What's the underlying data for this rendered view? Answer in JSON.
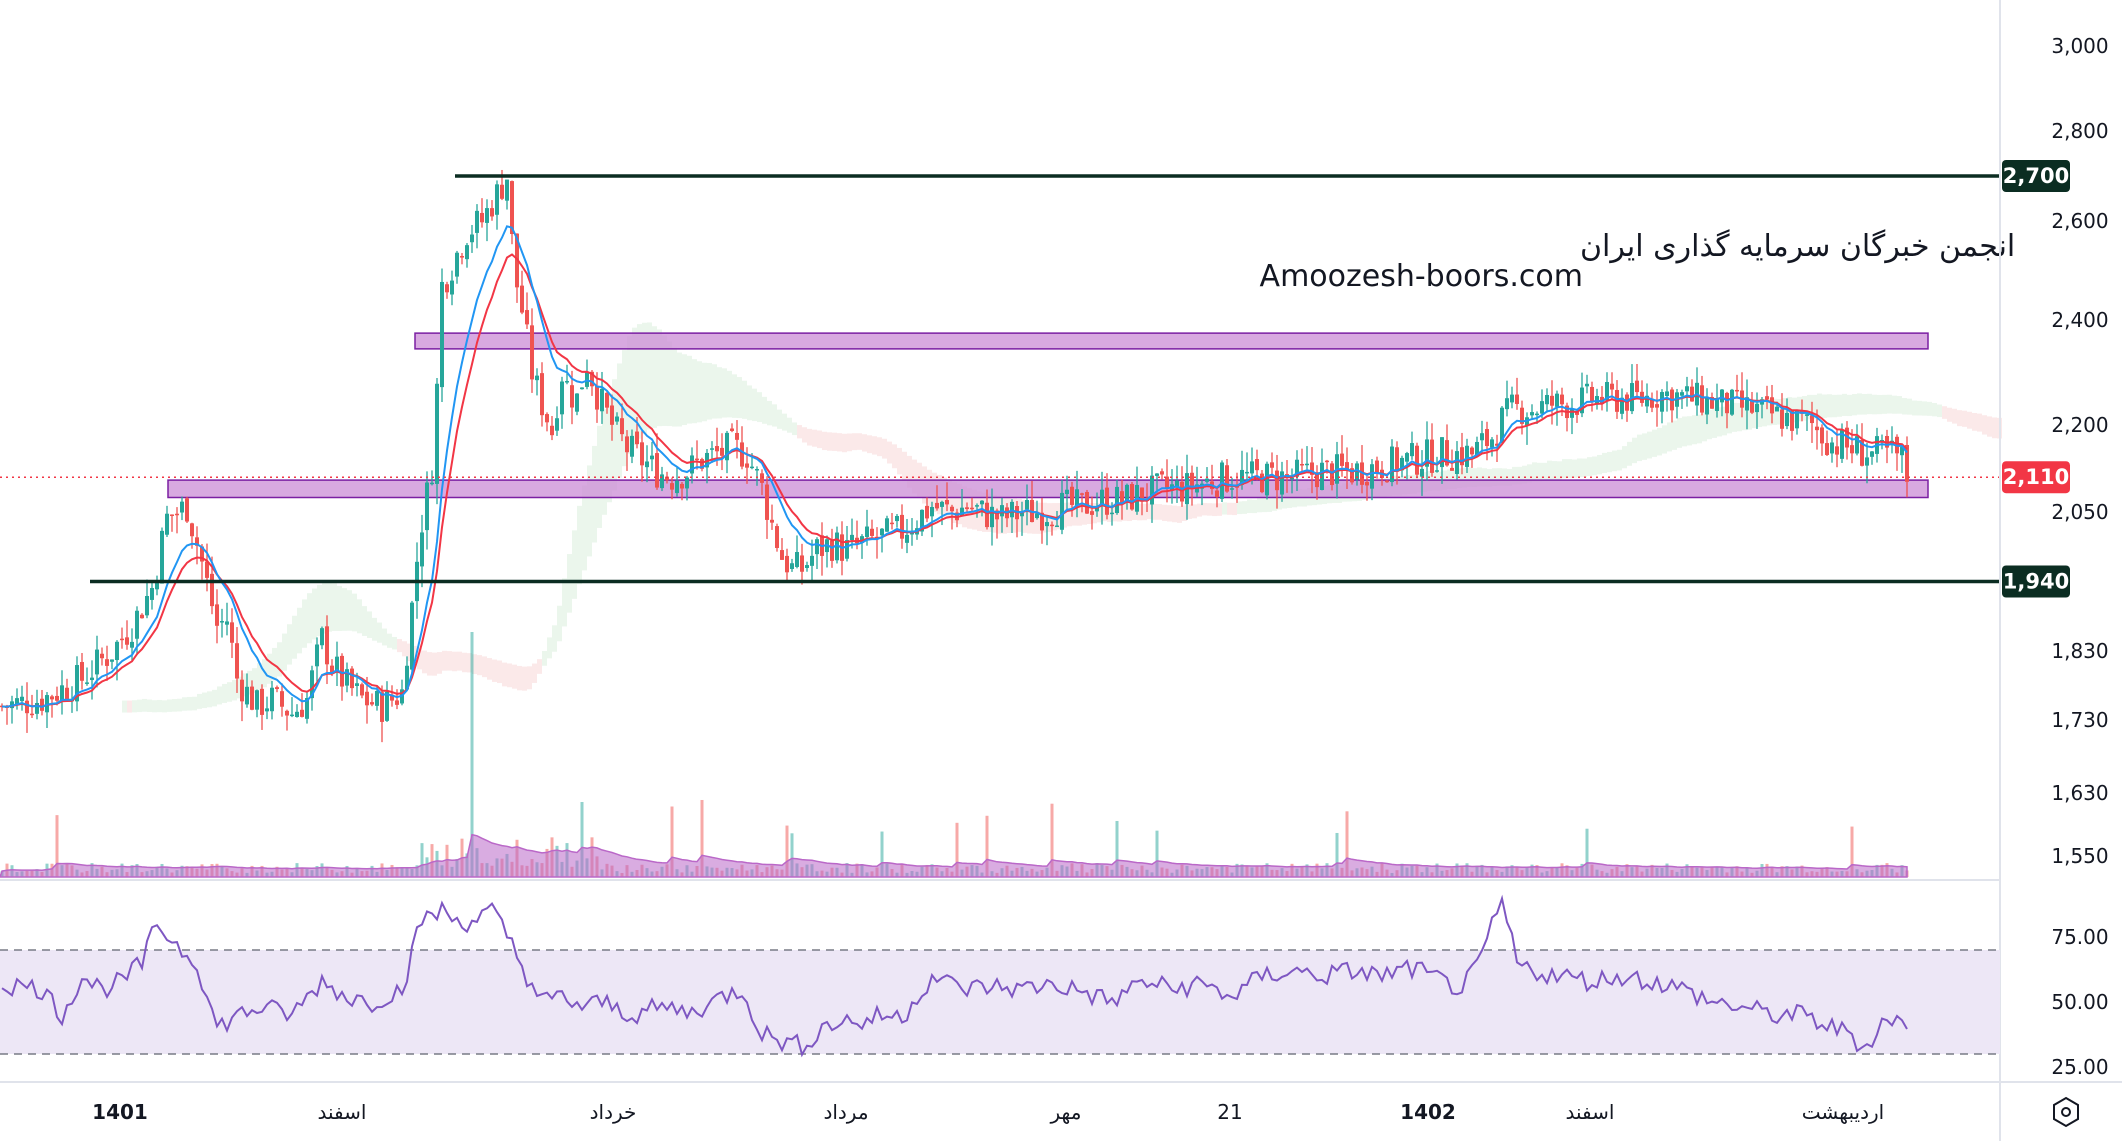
{
  "watermark": {
    "line1": "انجمن خبرگان سرمایه گذاری ایران",
    "line2": "Amoozesh-boors.com"
  },
  "colors": {
    "up": "#26a69a",
    "down": "#ef5350",
    "ema_fast": "#2196f3",
    "ema_slow": "#f23645",
    "zone_fill": "#ce93d8",
    "zone_stroke": "#7b1fa2",
    "level_line": "#0b2d22",
    "current_price": "#f23645",
    "rsi_line": "#7e57c2",
    "rsi_band": "#ede7f6",
    "volume_ma": "#ba68c8"
  },
  "chart_data": [
    {
      "type": "candlestick",
      "y_axis_ticks": [
        "3,000",
        "2,800",
        "2,600",
        "2,400",
        "2,200",
        "2,050",
        "1,830",
        "1,730",
        "1,630",
        "1,550"
      ],
      "x_axis_labels": [
        "1401",
        "اسفند",
        "خرداد",
        "مرداد",
        "مهر",
        "21",
        "1402",
        "اسفند",
        "اردیبهشت"
      ],
      "horizontal_levels": [
        {
          "value": 2700,
          "label": "2,700"
        },
        {
          "value": 1940,
          "label": "1,940"
        }
      ],
      "zones": [
        {
          "from": 2345,
          "to": 2375
        },
        {
          "from": 2075,
          "to": 2105
        }
      ],
      "current_price": {
        "value": 2110,
        "label": "2,110"
      },
      "price_anchors": [
        [
          0,
          1750
        ],
        [
          40,
          1760
        ],
        [
          80,
          1790
        ],
        [
          110,
          1830
        ],
        [
          130,
          1870
        ],
        [
          150,
          1930
        ],
        [
          165,
          2040
        ],
        [
          185,
          2060
        ],
        [
          200,
          1970
        ],
        [
          215,
          1870
        ],
        [
          225,
          1880
        ],
        [
          235,
          1790
        ],
        [
          255,
          1750
        ],
        [
          270,
          1760
        ],
        [
          290,
          1740
        ],
        [
          305,
          1760
        ],
        [
          320,
          1850
        ],
        [
          330,
          1810
        ],
        [
          345,
          1780
        ],
        [
          360,
          1760
        ],
        [
          380,
          1750
        ],
        [
          400,
          1770
        ],
        [
          410,
          1900
        ],
        [
          418,
          2020
        ],
        [
          425,
          2080
        ],
        [
          432,
          2150
        ],
        [
          440,
          2470
        ],
        [
          452,
          2520
        ],
        [
          465,
          2580
        ],
        [
          480,
          2600
        ],
        [
          490,
          2640
        ],
        [
          505,
          2700
        ],
        [
          512,
          2500
        ],
        [
          520,
          2420
        ],
        [
          530,
          2300
        ],
        [
          540,
          2240
        ],
        [
          550,
          2190
        ],
        [
          560,
          2300
        ],
        [
          568,
          2260
        ],
        [
          575,
          2250
        ],
        [
          585,
          2320
        ],
        [
          595,
          2260
        ],
        [
          610,
          2200
        ],
        [
          625,
          2160
        ],
        [
          640,
          2140
        ],
        [
          655,
          2120
        ],
        [
          670,
          2110
        ],
        [
          685,
          2120
        ],
        [
          700,
          2140
        ],
        [
          715,
          2150
        ],
        [
          730,
          2160
        ],
        [
          745,
          2150
        ],
        [
          760,
          2090
        ],
        [
          770,
          2030
        ],
        [
          780,
          1980
        ],
        [
          790,
          1960
        ],
        [
          800,
          1960
        ],
        [
          815,
          1990
        ],
        [
          830,
          2000
        ],
        [
          845,
          1990
        ],
        [
          860,
          2000
        ],
        [
          880,
          2010
        ],
        [
          900,
          2020
        ],
        [
          915,
          2040
        ],
        [
          930,
          2060
        ],
        [
          950,
          2050
        ],
        [
          965,
          2060
        ],
        [
          980,
          2050
        ],
        [
          1000,
          2040
        ],
        [
          1020,
          2050
        ],
        [
          1040,
          2050
        ],
        [
          1060,
          2060
        ],
        [
          1080,
          2060
        ],
        [
          1100,
          2070
        ],
        [
          1120,
          2070
        ],
        [
          1140,
          2080
        ],
        [
          1160,
          2090
        ],
        [
          1180,
          2090
        ],
        [
          1200,
          2100
        ],
        [
          1230,
          2110
        ],
        [
          1260,
          2110
        ],
        [
          1290,
          2110
        ],
        [
          1320,
          2120
        ],
        [
          1350,
          2120
        ],
        [
          1380,
          2130
        ],
        [
          1410,
          2140
        ],
        [
          1440,
          2150
        ],
        [
          1470,
          2150
        ],
        [
          1490,
          2180
        ],
        [
          1500,
          2210
        ],
        [
          1510,
          2230
        ],
        [
          1530,
          2230
        ],
        [
          1550,
          2240
        ],
        [
          1570,
          2240
        ],
        [
          1590,
          2250
        ],
        [
          1610,
          2250
        ],
        [
          1640,
          2250
        ],
        [
          1660,
          2260
        ],
        [
          1690,
          2250
        ],
        [
          1720,
          2240
        ],
        [
          1750,
          2230
        ],
        [
          1770,
          2220
        ],
        [
          1790,
          2210
        ],
        [
          1810,
          2200
        ],
        [
          1830,
          2170
        ],
        [
          1850,
          2160
        ],
        [
          1870,
          2150
        ],
        [
          1890,
          2150
        ],
        [
          1900,
          2140
        ],
        [
          1905,
          2110
        ]
      ],
      "rsi": {
        "y_ticks": [
          "75.00",
          "50.00",
          "25.00"
        ],
        "upper": 70,
        "lower": 30,
        "anchors": [
          [
            0,
            57
          ],
          [
            40,
            55
          ],
          [
            60,
            45
          ],
          [
            80,
            60
          ],
          [
            100,
            55
          ],
          [
            120,
            58
          ],
          [
            140,
            65
          ],
          [
            155,
            80
          ],
          [
            175,
            72
          ],
          [
            195,
            65
          ],
          [
            215,
            40
          ],
          [
            235,
            45
          ],
          [
            260,
            48
          ],
          [
            290,
            45
          ],
          [
            320,
            58
          ],
          [
            345,
            52
          ],
          [
            370,
            50
          ],
          [
            400,
            55
          ],
          [
            420,
            82
          ],
          [
            440,
            85
          ],
          [
            460,
            80
          ],
          [
            490,
            85
          ],
          [
            510,
            72
          ],
          [
            525,
            60
          ],
          [
            540,
            50
          ],
          [
            560,
            52
          ],
          [
            580,
            48
          ],
          [
            600,
            50
          ],
          [
            630,
            45
          ],
          [
            660,
            48
          ],
          [
            690,
            46
          ],
          [
            720,
            52
          ],
          [
            740,
            55
          ],
          [
            760,
            38
          ],
          [
            780,
            35
          ],
          [
            800,
            33
          ],
          [
            820,
            40
          ],
          [
            840,
            43
          ],
          [
            860,
            42
          ],
          [
            880,
            45
          ],
          [
            900,
            44
          ],
          [
            930,
            60
          ],
          [
            960,
            55
          ],
          [
            990,
            56
          ],
          [
            1020,
            55
          ],
          [
            1050,
            57
          ],
          [
            1080,
            54
          ],
          [
            1110,
            50
          ],
          [
            1140,
            58
          ],
          [
            1170,
            55
          ],
          [
            1200,
            57
          ],
          [
            1230,
            52
          ],
          [
            1260,
            60
          ],
          [
            1290,
            62
          ],
          [
            1320,
            60
          ],
          [
            1350,
            62
          ],
          [
            1380,
            60
          ],
          [
            1410,
            63
          ],
          [
            1440,
            58
          ],
          [
            1460,
            55
          ],
          [
            1480,
            66
          ],
          [
            1490,
            80
          ],
          [
            1500,
            88
          ],
          [
            1515,
            65
          ],
          [
            1530,
            62
          ],
          [
            1560,
            60
          ],
          [
            1590,
            58
          ],
          [
            1620,
            60
          ],
          [
            1650,
            58
          ],
          [
            1680,
            55
          ],
          [
            1710,
            50
          ],
          [
            1740,
            48
          ],
          [
            1770,
            45
          ],
          [
            1800,
            45
          ],
          [
            1830,
            40
          ],
          [
            1850,
            38
          ],
          [
            1860,
            32
          ],
          [
            1870,
            36
          ],
          [
            1880,
            42
          ],
          [
            1895,
            44
          ],
          [
            1905,
            38
          ]
        ]
      }
    }
  ]
}
